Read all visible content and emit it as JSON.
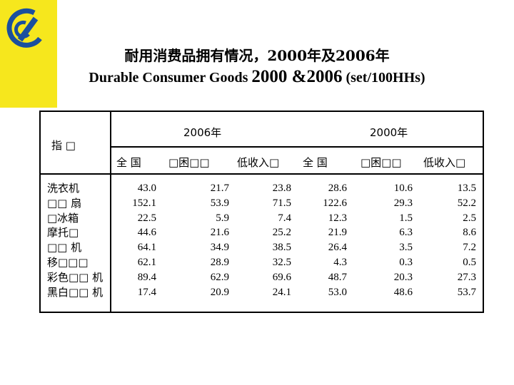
{
  "title_cn": "耐用消费品拥有情况，2000年及2006年",
  "title_en": {
    "part1": "Durable Consumer Goods ",
    "years": "2000 &2006",
    "part2": " (set/100HHs)"
  },
  "table": {
    "indicator_header": "指 □",
    "year_groups": [
      "2006年",
      "2000年"
    ],
    "sub_headers": [
      "全 国",
      "□困□□",
      "低收入□",
      "全 国",
      "□困□□",
      "低收入□"
    ],
    "rows": [
      {
        "label": "洗衣机",
        "values": [
          "43.0",
          "21.7",
          "23.8",
          "28.6",
          "10.6",
          "13.5"
        ]
      },
      {
        "label": "□□ 扇",
        "values": [
          "152.1",
          "53.9",
          "71.5",
          "122.6",
          "29.3",
          "52.2"
        ]
      },
      {
        "label": "□冰箱",
        "values": [
          "22.5",
          "5.9",
          "7.4",
          "12.3",
          "1.5",
          "2.5"
        ]
      },
      {
        "label": "摩托□",
        "values": [
          "44.6",
          "21.6",
          "25.2",
          "21.9",
          "6.3",
          "8.6"
        ]
      },
      {
        "label": "□□ 机",
        "values": [
          "64.1",
          "34.9",
          "38.5",
          "26.4",
          "3.5",
          "7.2"
        ]
      },
      {
        "label": "移□□□",
        "values": [
          "62.1",
          "28.9",
          "32.5",
          "4.3",
          "0.3",
          "0.5"
        ]
      },
      {
        "label": "彩色□□ 机",
        "values": [
          "89.4",
          "62.9",
          "69.6",
          "48.7",
          "20.3",
          "27.3"
        ]
      },
      {
        "label": "黑白□□ 机",
        "values": [
          "17.4",
          "20.9",
          "24.1",
          "53.0",
          "48.6",
          "53.7"
        ]
      }
    ]
  },
  "colors": {
    "logo_band": "#f6e71d",
    "logo": "#1a4f9e"
  }
}
